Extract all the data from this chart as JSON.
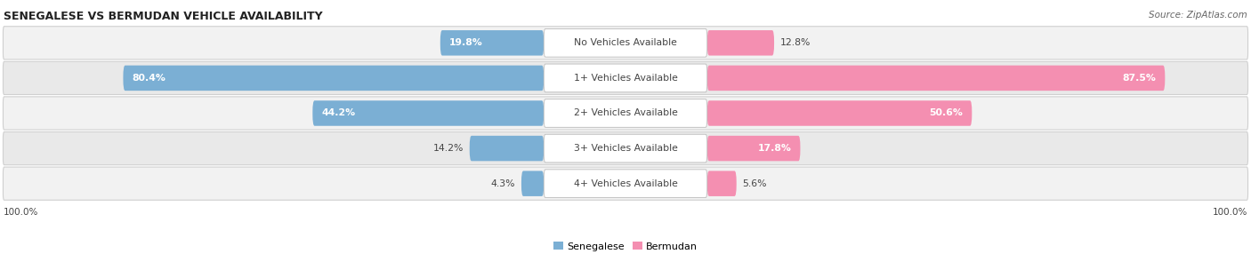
{
  "title": "SENEGALESE VS BERMUDAN VEHICLE AVAILABILITY",
  "source": "Source: ZipAtlas.com",
  "categories": [
    "No Vehicles Available",
    "1+ Vehicles Available",
    "2+ Vehicles Available",
    "3+ Vehicles Available",
    "4+ Vehicles Available"
  ],
  "senegalese": [
    19.8,
    80.4,
    44.2,
    14.2,
    4.3
  ],
  "bermudan": [
    12.8,
    87.5,
    50.6,
    17.8,
    5.6
  ],
  "senegalese_color": "#7bafd4",
  "bermudan_color": "#f48fb1",
  "label_color": "#444444",
  "title_color": "#222222",
  "row_colors": [
    "#f2f2f2",
    "#e9e9e9",
    "#f2f2f2",
    "#e9e9e9",
    "#f2f2f2"
  ],
  "max_val": 100.0,
  "figsize": [
    14.06,
    2.86
  ],
  "dpi": 100
}
